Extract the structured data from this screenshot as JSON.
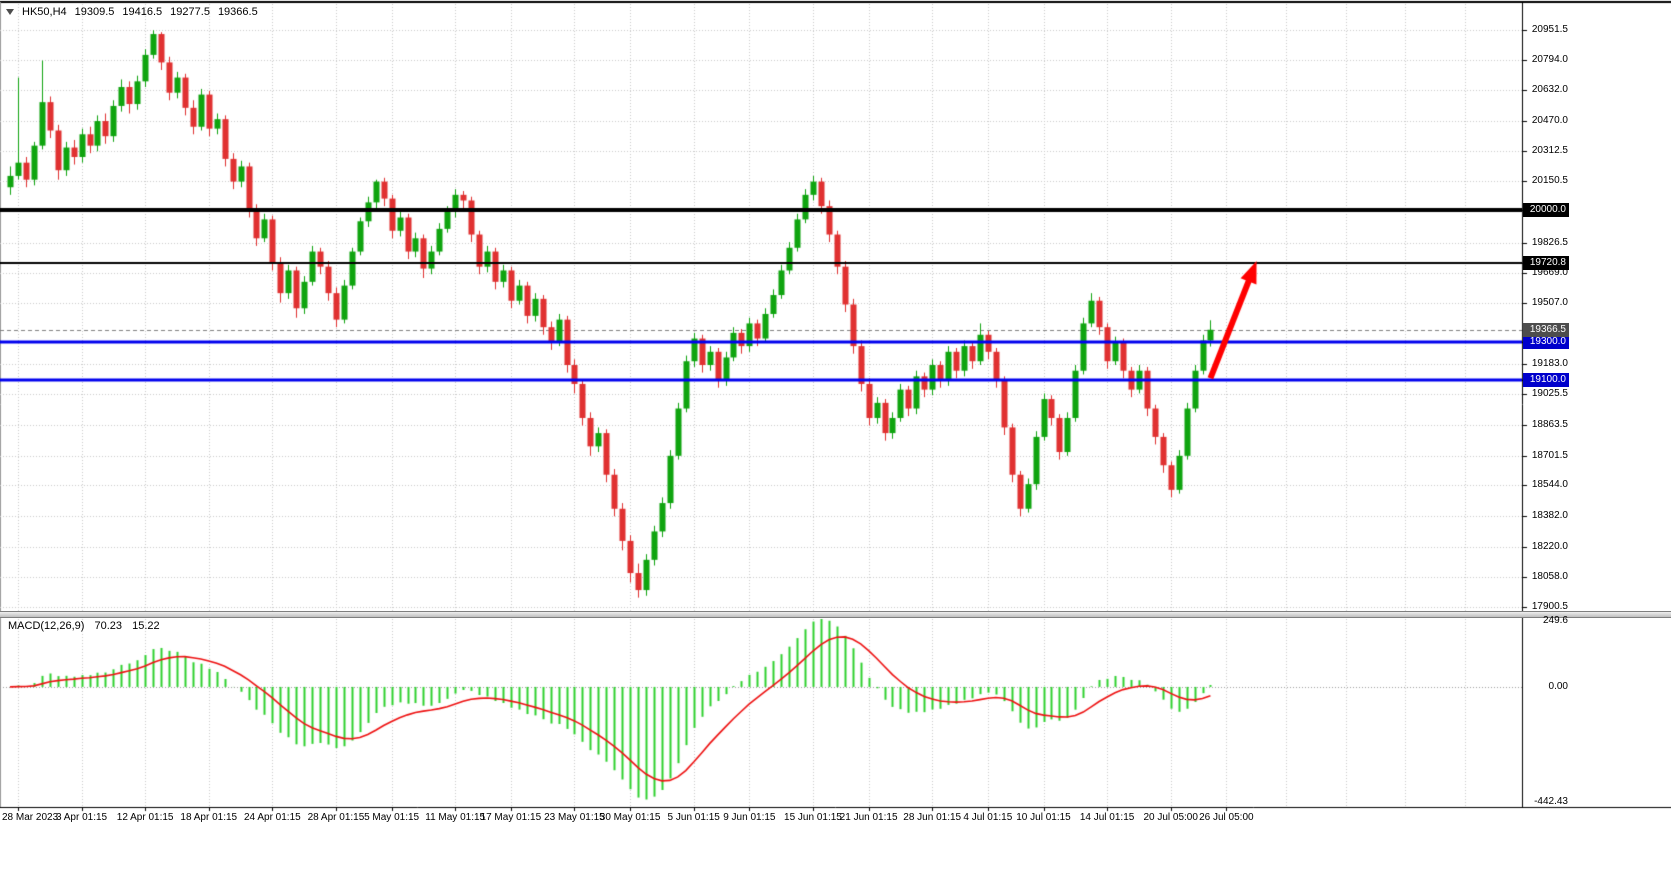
{
  "header": {
    "symbol": "HK50,H4",
    "open": "19309.5",
    "high": "19416.5",
    "low": "19277.5",
    "close": "19366.5"
  },
  "colors": {
    "bull": "#0fa40f",
    "bear": "#e03131",
    "grid": "#c9c9c9",
    "macd_bar": "#2fd12f",
    "macd_signal": "#ee1111",
    "arrow": "#ff0000",
    "level_blue": "#0000ee",
    "level_black": "#000000"
  },
  "chart_data": {
    "type": "candlestick",
    "symbol": "HK50",
    "timeframe": "H4",
    "title": "HK50,H4 19309.5 19416.5 19277.5 19366.5",
    "price_axis": {
      "range": {
        "max": 20951.5,
        "min": 17900.5
      },
      "ticks": [
        {
          "label": "20951.5",
          "price": 20951.5
        },
        {
          "label": "20794.0",
          "price": 20794.0
        },
        {
          "label": "20632.0",
          "price": 20632.0
        },
        {
          "label": "20470.0",
          "price": 20470.0
        },
        {
          "label": "20312.5",
          "price": 20312.5
        },
        {
          "label": "20150.5",
          "price": 20150.5
        },
        {
          "label": "19826.5",
          "price": 19826.5
        },
        {
          "label": "19669.0",
          "price": 19669.0
        },
        {
          "label": "19507.0",
          "price": 19507.0
        },
        {
          "label": "19183.0",
          "price": 19183.0
        },
        {
          "label": "19025.5",
          "price": 19025.5
        },
        {
          "label": "18863.5",
          "price": 18863.5
        },
        {
          "label": "18701.5",
          "price": 18701.5
        },
        {
          "label": "18544.0",
          "price": 18544.0
        },
        {
          "label": "18382.0",
          "price": 18382.0
        },
        {
          "label": "18220.0",
          "price": 18220.0
        },
        {
          "label": "18058.0",
          "price": 18058.0
        },
        {
          "label": "17900.5",
          "price": 17900.5
        }
      ]
    },
    "levels": [
      {
        "label": "20000.0",
        "price": 20000.0,
        "line_color": "#000000",
        "line_width": 4,
        "box_color": "#000000"
      },
      {
        "label": "19720.8",
        "price": 19720.8,
        "line_color": "#000000",
        "line_width": 2,
        "box_color": "#000000"
      },
      {
        "label": "19300.0",
        "price": 19300.0,
        "line_color": "#0000ee",
        "line_width": 3,
        "box_color": "#0000cc"
      },
      {
        "label": "19100.0",
        "price": 19100.0,
        "line_color": "#0000ee",
        "line_width": 3,
        "box_color": "#0000cc"
      }
    ],
    "current_price": {
      "label": "19366.5",
      "price": 19366.5,
      "line_color": "#808080",
      "box_color": "#4d4d4d"
    },
    "time_labels": [
      {
        "text": "28 Mar 2023",
        "index": 1
      },
      {
        "text": "3 Apr 01:15",
        "index": 9
      },
      {
        "text": "12 Apr 01:15",
        "index": 17
      },
      {
        "text": "18 Apr 01:15",
        "index": 25
      },
      {
        "text": "24 Apr 01:15",
        "index": 33
      },
      {
        "text": "28 Apr 01:15",
        "index": 41
      },
      {
        "text": "5 May 01:15",
        "index": 48
      },
      {
        "text": "11 May 01:15",
        "index": 56
      },
      {
        "text": "17 May 01:15",
        "index": 63
      },
      {
        "text": "23 May 01:15",
        "index": 71
      },
      {
        "text": "30 May 01:15",
        "index": 78
      },
      {
        "text": "5 Jun 01:15",
        "index": 86
      },
      {
        "text": "9 Jun 01:15",
        "index": 93
      },
      {
        "text": "15 Jun 01:15",
        "index": 101
      },
      {
        "text": "21 Jun 01:15",
        "index": 108
      },
      {
        "text": "28 Jun 01:15",
        "index": 116
      },
      {
        "text": "4 Jul 01:15",
        "index": 123
      },
      {
        "text": "10 Jul 01:15",
        "index": 130
      },
      {
        "text": "14 Jul 01:15",
        "index": 138
      },
      {
        "text": "20 Jul 05:00",
        "index": 146
      },
      {
        "text": "26 Jul 05:00",
        "index": 153
      }
    ],
    "candles": [
      [
        20120,
        20230,
        20080,
        20180
      ],
      [
        20180,
        20700,
        20160,
        20250
      ],
      [
        20250,
        20280,
        20120,
        20160
      ],
      [
        20160,
        20360,
        20130,
        20340
      ],
      [
        20340,
        20790,
        20320,
        20570
      ],
      [
        20570,
        20600,
        20380,
        20420
      ],
      [
        20420,
        20450,
        20160,
        20210
      ],
      [
        20210,
        20360,
        20180,
        20330
      ],
      [
        20330,
        20370,
        20240,
        20280
      ],
      [
        20280,
        20430,
        20250,
        20400
      ],
      [
        20400,
        20440,
        20300,
        20340
      ],
      [
        20340,
        20500,
        20310,
        20470
      ],
      [
        20470,
        20510,
        20350,
        20390
      ],
      [
        20390,
        20580,
        20360,
        20550
      ],
      [
        20550,
        20690,
        20520,
        20650
      ],
      [
        20650,
        20680,
        20510,
        20560
      ],
      [
        20560,
        20710,
        20530,
        20680
      ],
      [
        20680,
        20850,
        20650,
        20820
      ],
      [
        20820,
        20950,
        20800,
        20930
      ],
      [
        20930,
        20940,
        20740,
        20780
      ],
      [
        20780,
        20810,
        20580,
        20620
      ],
      [
        20620,
        20730,
        20590,
        20700
      ],
      [
        20700,
        20720,
        20500,
        20540
      ],
      [
        20540,
        20580,
        20400,
        20440
      ],
      [
        20440,
        20640,
        20420,
        20610
      ],
      [
        20610,
        20630,
        20390,
        20430
      ],
      [
        20430,
        20510,
        20400,
        20480
      ],
      [
        20480,
        20500,
        20230,
        20270
      ],
      [
        20270,
        20300,
        20110,
        20150
      ],
      [
        20150,
        20260,
        20120,
        20230
      ],
      [
        20230,
        20250,
        19960,
        20000
      ],
      [
        20000,
        20030,
        19810,
        19850
      ],
      [
        19850,
        19980,
        19830,
        19950
      ],
      [
        19950,
        19970,
        19680,
        19720
      ],
      [
        19720,
        19750,
        19510,
        19560
      ],
      [
        19560,
        19710,
        19530,
        19680
      ],
      [
        19680,
        19700,
        19430,
        19480
      ],
      [
        19480,
        19650,
        19450,
        19620
      ],
      [
        19620,
        19810,
        19600,
        19780
      ],
      [
        19780,
        19800,
        19660,
        19700
      ],
      [
        19700,
        19730,
        19520,
        19560
      ],
      [
        19560,
        19590,
        19380,
        19420
      ],
      [
        19420,
        19630,
        19400,
        19600
      ],
      [
        19600,
        19800,
        19580,
        19780
      ],
      [
        19780,
        19960,
        19760,
        19940
      ],
      [
        19940,
        20070,
        19910,
        20040
      ],
      [
        20040,
        20160,
        20010,
        20150
      ],
      [
        20150,
        20170,
        20020,
        20060
      ],
      [
        20060,
        20080,
        19850,
        19890
      ],
      [
        19890,
        19990,
        19860,
        19960
      ],
      [
        19960,
        19980,
        19740,
        19780
      ],
      [
        19780,
        19880,
        19750,
        19850
      ],
      [
        19850,
        19870,
        19640,
        19690
      ],
      [
        19690,
        19810,
        19660,
        19780
      ],
      [
        19780,
        19930,
        19760,
        19900
      ],
      [
        19900,
        20020,
        19880,
        19990
      ],
      [
        19990,
        20110,
        19960,
        20080
      ],
      [
        20080,
        20100,
        20010,
        20050
      ],
      [
        20050,
        20070,
        19830,
        19870
      ],
      [
        19870,
        19890,
        19660,
        19700
      ],
      [
        19700,
        19810,
        19670,
        19780
      ],
      [
        19780,
        19800,
        19580,
        19620
      ],
      [
        19620,
        19710,
        19590,
        19680
      ],
      [
        19680,
        19700,
        19480,
        19520
      ],
      [
        19520,
        19630,
        19500,
        19600
      ],
      [
        19600,
        19620,
        19400,
        19440
      ],
      [
        19440,
        19560,
        19410,
        19530
      ],
      [
        19530,
        19550,
        19340,
        19380
      ],
      [
        19380,
        19410,
        19260,
        19300
      ],
      [
        19300,
        19450,
        19280,
        19420
      ],
      [
        19420,
        19440,
        19140,
        19180
      ],
      [
        19180,
        19210,
        19030,
        19080
      ],
      [
        19080,
        19100,
        18860,
        18900
      ],
      [
        18900,
        18930,
        18700,
        18750
      ],
      [
        18750,
        18850,
        18720,
        18820
      ],
      [
        18820,
        18840,
        18560,
        18600
      ],
      [
        18600,
        18630,
        18380,
        18420
      ],
      [
        18420,
        18450,
        18200,
        18250
      ],
      [
        18250,
        18280,
        18030,
        18080
      ],
      [
        18080,
        18130,
        17950,
        17990
      ],
      [
        17990,
        18180,
        17960,
        18150
      ],
      [
        18150,
        18330,
        18120,
        18300
      ],
      [
        18300,
        18480,
        18270,
        18450
      ],
      [
        18450,
        18730,
        18420,
        18700
      ],
      [
        18700,
        18980,
        18680,
        18950
      ],
      [
        18950,
        19230,
        18930,
        19200
      ],
      [
        19200,
        19350,
        19170,
        19320
      ],
      [
        19320,
        19340,
        19140,
        19180
      ],
      [
        19180,
        19280,
        19150,
        19250
      ],
      [
        19250,
        19270,
        19060,
        19100
      ],
      [
        19100,
        19250,
        19070,
        19220
      ],
      [
        19220,
        19380,
        19200,
        19350
      ],
      [
        19350,
        19370,
        19240,
        19280
      ],
      [
        19280,
        19430,
        19250,
        19400
      ],
      [
        19400,
        19420,
        19280,
        19320
      ],
      [
        19320,
        19480,
        19300,
        19450
      ],
      [
        19450,
        19580,
        19430,
        19550
      ],
      [
        19550,
        19710,
        19530,
        19680
      ],
      [
        19680,
        19830,
        19660,
        19800
      ],
      [
        19800,
        19980,
        19780,
        19950
      ],
      [
        19950,
        20110,
        19930,
        20080
      ],
      [
        20080,
        20180,
        20050,
        20150
      ],
      [
        20150,
        20170,
        19980,
        20020
      ],
      [
        20020,
        20050,
        19830,
        19870
      ],
      [
        19870,
        19890,
        19660,
        19700
      ],
      [
        19700,
        19730,
        19460,
        19500
      ],
      [
        19500,
        19530,
        19240,
        19280
      ],
      [
        19280,
        19310,
        19040,
        19080
      ],
      [
        19080,
        19110,
        18860,
        18900
      ],
      [
        18900,
        19010,
        18870,
        18980
      ],
      [
        18980,
        19000,
        18780,
        18820
      ],
      [
        18820,
        18930,
        18790,
        18900
      ],
      [
        18900,
        19080,
        18880,
        19050
      ],
      [
        19050,
        19070,
        18910,
        18950
      ],
      [
        18950,
        19150,
        18920,
        19120
      ],
      [
        19120,
        19140,
        19010,
        19050
      ],
      [
        19050,
        19210,
        19020,
        19180
      ],
      [
        19180,
        19200,
        19060,
        19100
      ],
      [
        19100,
        19280,
        19070,
        19250
      ],
      [
        19250,
        19270,
        19110,
        19150
      ],
      [
        19150,
        19310,
        19120,
        19280
      ],
      [
        19280,
        19300,
        19160,
        19200
      ],
      [
        19200,
        19400,
        19180,
        19340
      ],
      [
        19340,
        19360,
        19210,
        19250
      ],
      [
        19250,
        19270,
        19060,
        19100
      ],
      [
        19100,
        19120,
        18810,
        18850
      ],
      [
        18850,
        18870,
        18560,
        18600
      ],
      [
        18600,
        18620,
        18380,
        18420
      ],
      [
        18420,
        18580,
        18400,
        18550
      ],
      [
        18550,
        18830,
        18520,
        18800
      ],
      [
        18800,
        19030,
        18780,
        19000
      ],
      [
        19000,
        19020,
        18860,
        18900
      ],
      [
        18900,
        18920,
        18680,
        18720
      ],
      [
        18720,
        18930,
        18700,
        18900
      ],
      [
        18900,
        19180,
        18880,
        19150
      ],
      [
        19150,
        19430,
        19130,
        19400
      ],
      [
        19400,
        19560,
        19380,
        19520
      ],
      [
        19520,
        19540,
        19340,
        19380
      ],
      [
        19380,
        19400,
        19160,
        19200
      ],
      [
        19200,
        19330,
        19180,
        19300
      ],
      [
        19300,
        19320,
        19110,
        19150
      ],
      [
        19150,
        19170,
        19010,
        19050
      ],
      [
        19050,
        19180,
        19030,
        19150
      ],
      [
        19150,
        19170,
        18910,
        18950
      ],
      [
        18950,
        18970,
        18760,
        18800
      ],
      [
        18800,
        18820,
        18610,
        18650
      ],
      [
        18650,
        18670,
        18480,
        18520
      ],
      [
        18520,
        18730,
        18500,
        18700
      ],
      [
        18700,
        18980,
        18680,
        18950
      ],
      [
        18950,
        19180,
        18930,
        19150
      ],
      [
        19150,
        19340,
        19130,
        19310
      ],
      [
        19309.5,
        19416.5,
        19277.5,
        19366.5
      ]
    ],
    "indicator": {
      "name": "MACD(12,26,9)",
      "fast": 12,
      "slow": 26,
      "signal": 9,
      "main_value": "70.23",
      "signal_value": "15.22",
      "axis_max_label": "249.6",
      "axis_zero_label": "0.00",
      "axis_min_label": "-442.43",
      "scale_max": 249.6,
      "scale_min": -442.43
    },
    "annotation_arrow": {
      "from_index": 151,
      "from_price": 19110,
      "to_index": 156.8,
      "to_price": 19730,
      "color": "#ff0000"
    }
  }
}
